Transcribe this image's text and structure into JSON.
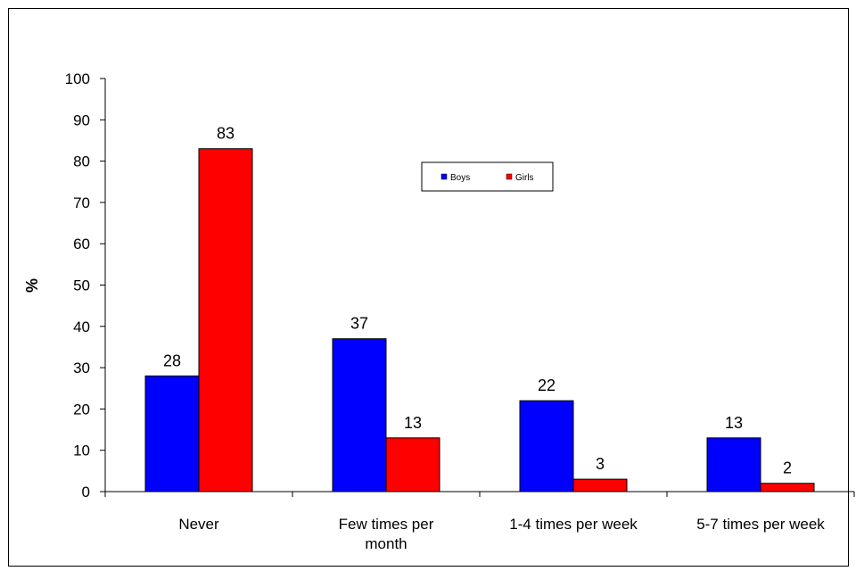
{
  "chart_data": {
    "type": "bar",
    "categories": [
      "Never",
      "Few times per month",
      "1-4 times per week",
      "5-7 times per week"
    ],
    "category_lines": [
      [
        "Never"
      ],
      [
        "Few times per",
        "month"
      ],
      [
        "1-4 times per week"
      ],
      [
        "5-7 times per week"
      ]
    ],
    "series": [
      {
        "name": "Boys",
        "values": [
          28,
          37,
          22,
          13
        ],
        "value_labels": [
          "28",
          "37",
          "22",
          "13"
        ],
        "color": "#0000FF"
      },
      {
        "name": "Girls",
        "values": [
          83,
          13,
          3,
          2
        ],
        "value_labels": [
          "83",
          "13",
          "3",
          "2"
        ],
        "color": "#FF0000"
      }
    ],
    "ylabel": "%",
    "xlabel": "",
    "ylim": [
      0,
      100
    ],
    "yticks": [
      "0",
      "10",
      "20",
      "30",
      "40",
      "50",
      "60",
      "70",
      "80",
      "90",
      "100"
    ],
    "grid": false,
    "legend_position": "top-center"
  }
}
